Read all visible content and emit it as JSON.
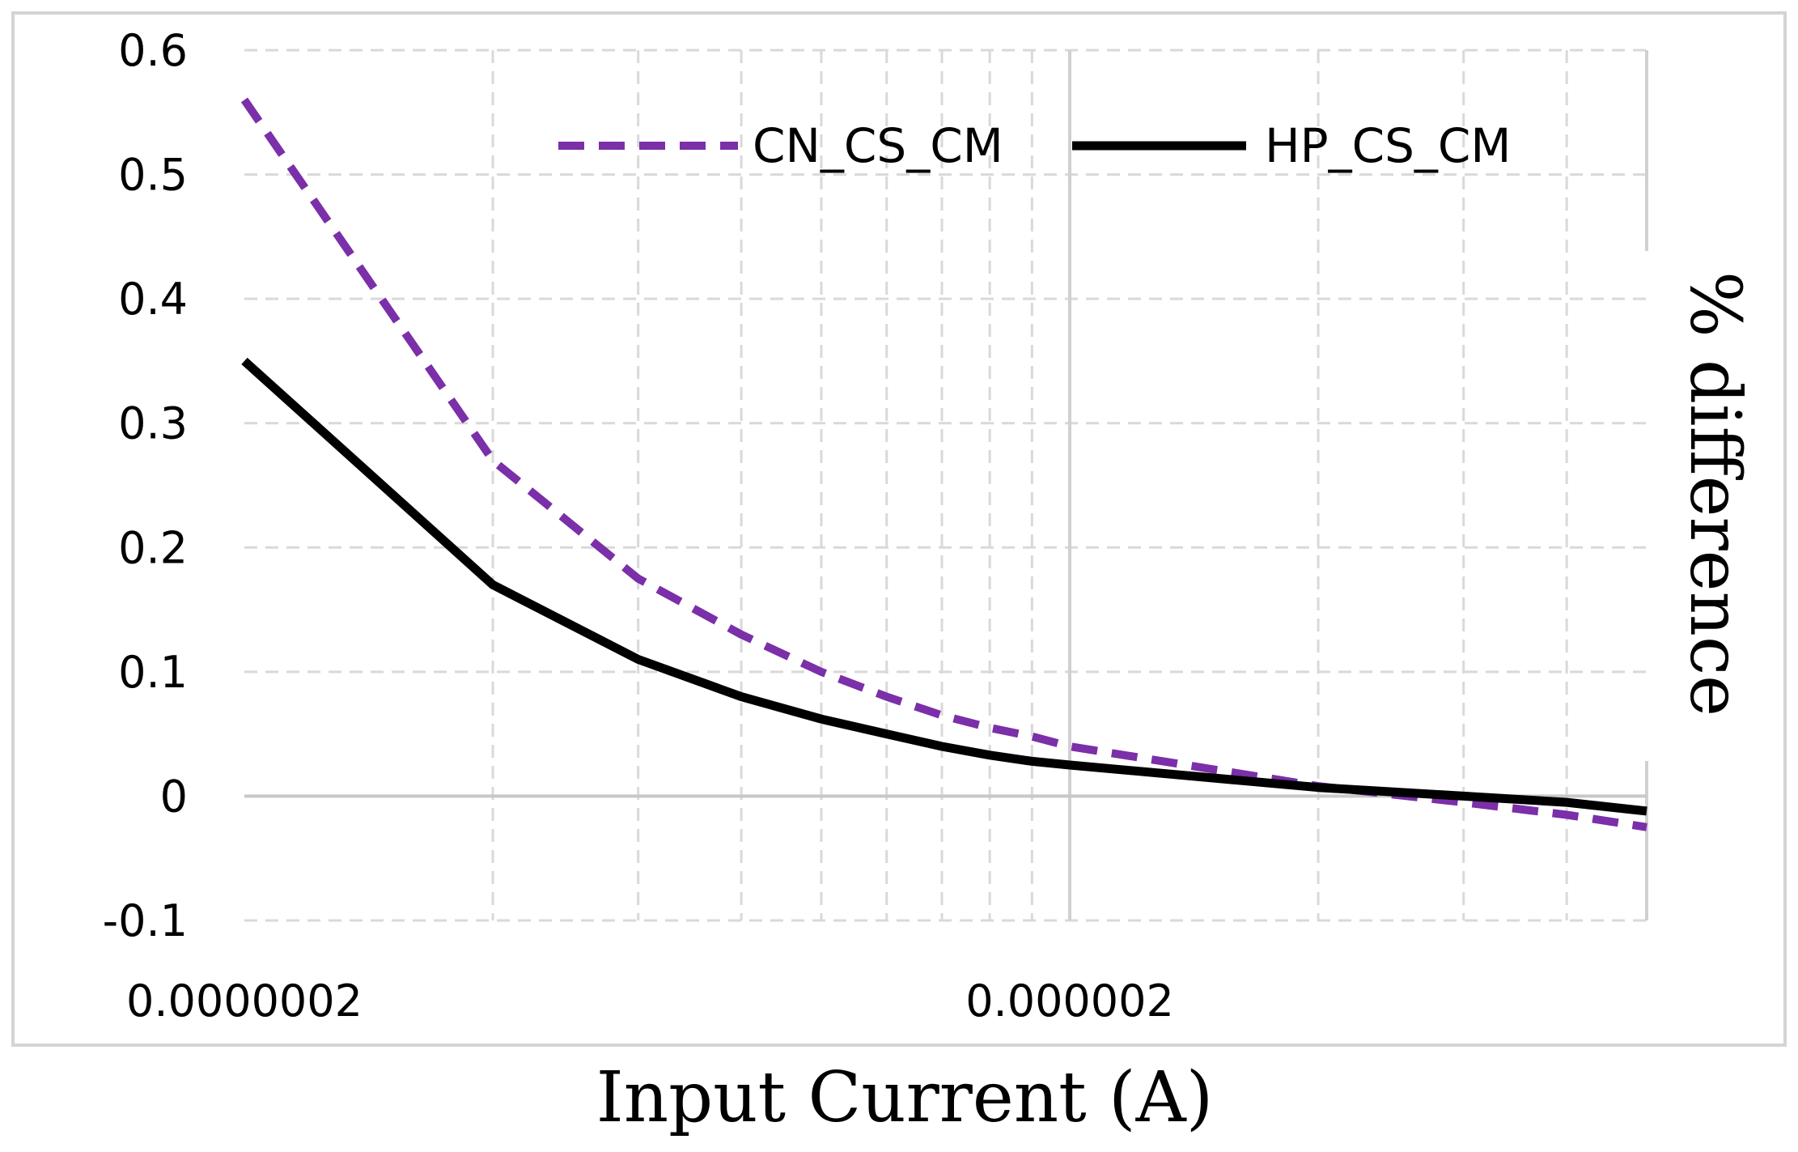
{
  "chart_data": {
    "type": "line",
    "title": "",
    "xlabel": "Input Current (A)",
    "ylabel": "% difference",
    "x_scale": "log",
    "xlim": [
      2e-07,
      1e-05
    ],
    "ylim": [
      -0.1,
      0.6
    ],
    "y_ticks": [
      -0.1,
      0,
      0.1,
      0.2,
      0.3,
      0.4,
      0.5,
      0.6
    ],
    "y_tick_labels": [
      "-0.1",
      "0",
      "0.1",
      "0.2",
      "0.3",
      "0.4",
      "0.5",
      "0.6"
    ],
    "x_major_ticks": [
      2e-07,
      2e-06
    ],
    "x_tick_labels": [
      "0.0000002",
      "0.000002"
    ],
    "x_minor_ticks": [
      4e-07,
      6e-07,
      8e-07,
      1e-06,
      1.2e-06,
      1.4e-06,
      1.6e-06,
      1.8e-06,
      4e-06,
      6e-06,
      8e-06
    ],
    "grid": true,
    "legend_position": "top",
    "x": [
      2e-07,
      4e-07,
      6e-07,
      8e-07,
      1e-06,
      1.2e-06,
      1.4e-06,
      1.6e-06,
      1.8e-06,
      2e-06,
      4e-06,
      6e-06,
      8e-06,
      1e-05
    ],
    "series": [
      {
        "name": "CN_CS_CM",
        "color": "#7B2FA8",
        "style": "dashed",
        "values": [
          0.56,
          0.27,
          0.175,
          0.13,
          0.1,
          0.08,
          0.065,
          0.055,
          0.048,
          0.04,
          0.008,
          -0.005,
          -0.015,
          -0.025
        ]
      },
      {
        "name": "HP_CS_CM",
        "color": "#000000",
        "style": "solid",
        "values": [
          0.35,
          0.17,
          0.11,
          0.08,
          0.062,
          0.05,
          0.04,
          0.033,
          0.028,
          0.025,
          0.007,
          0.0,
          -0.005,
          -0.012
        ]
      }
    ]
  }
}
